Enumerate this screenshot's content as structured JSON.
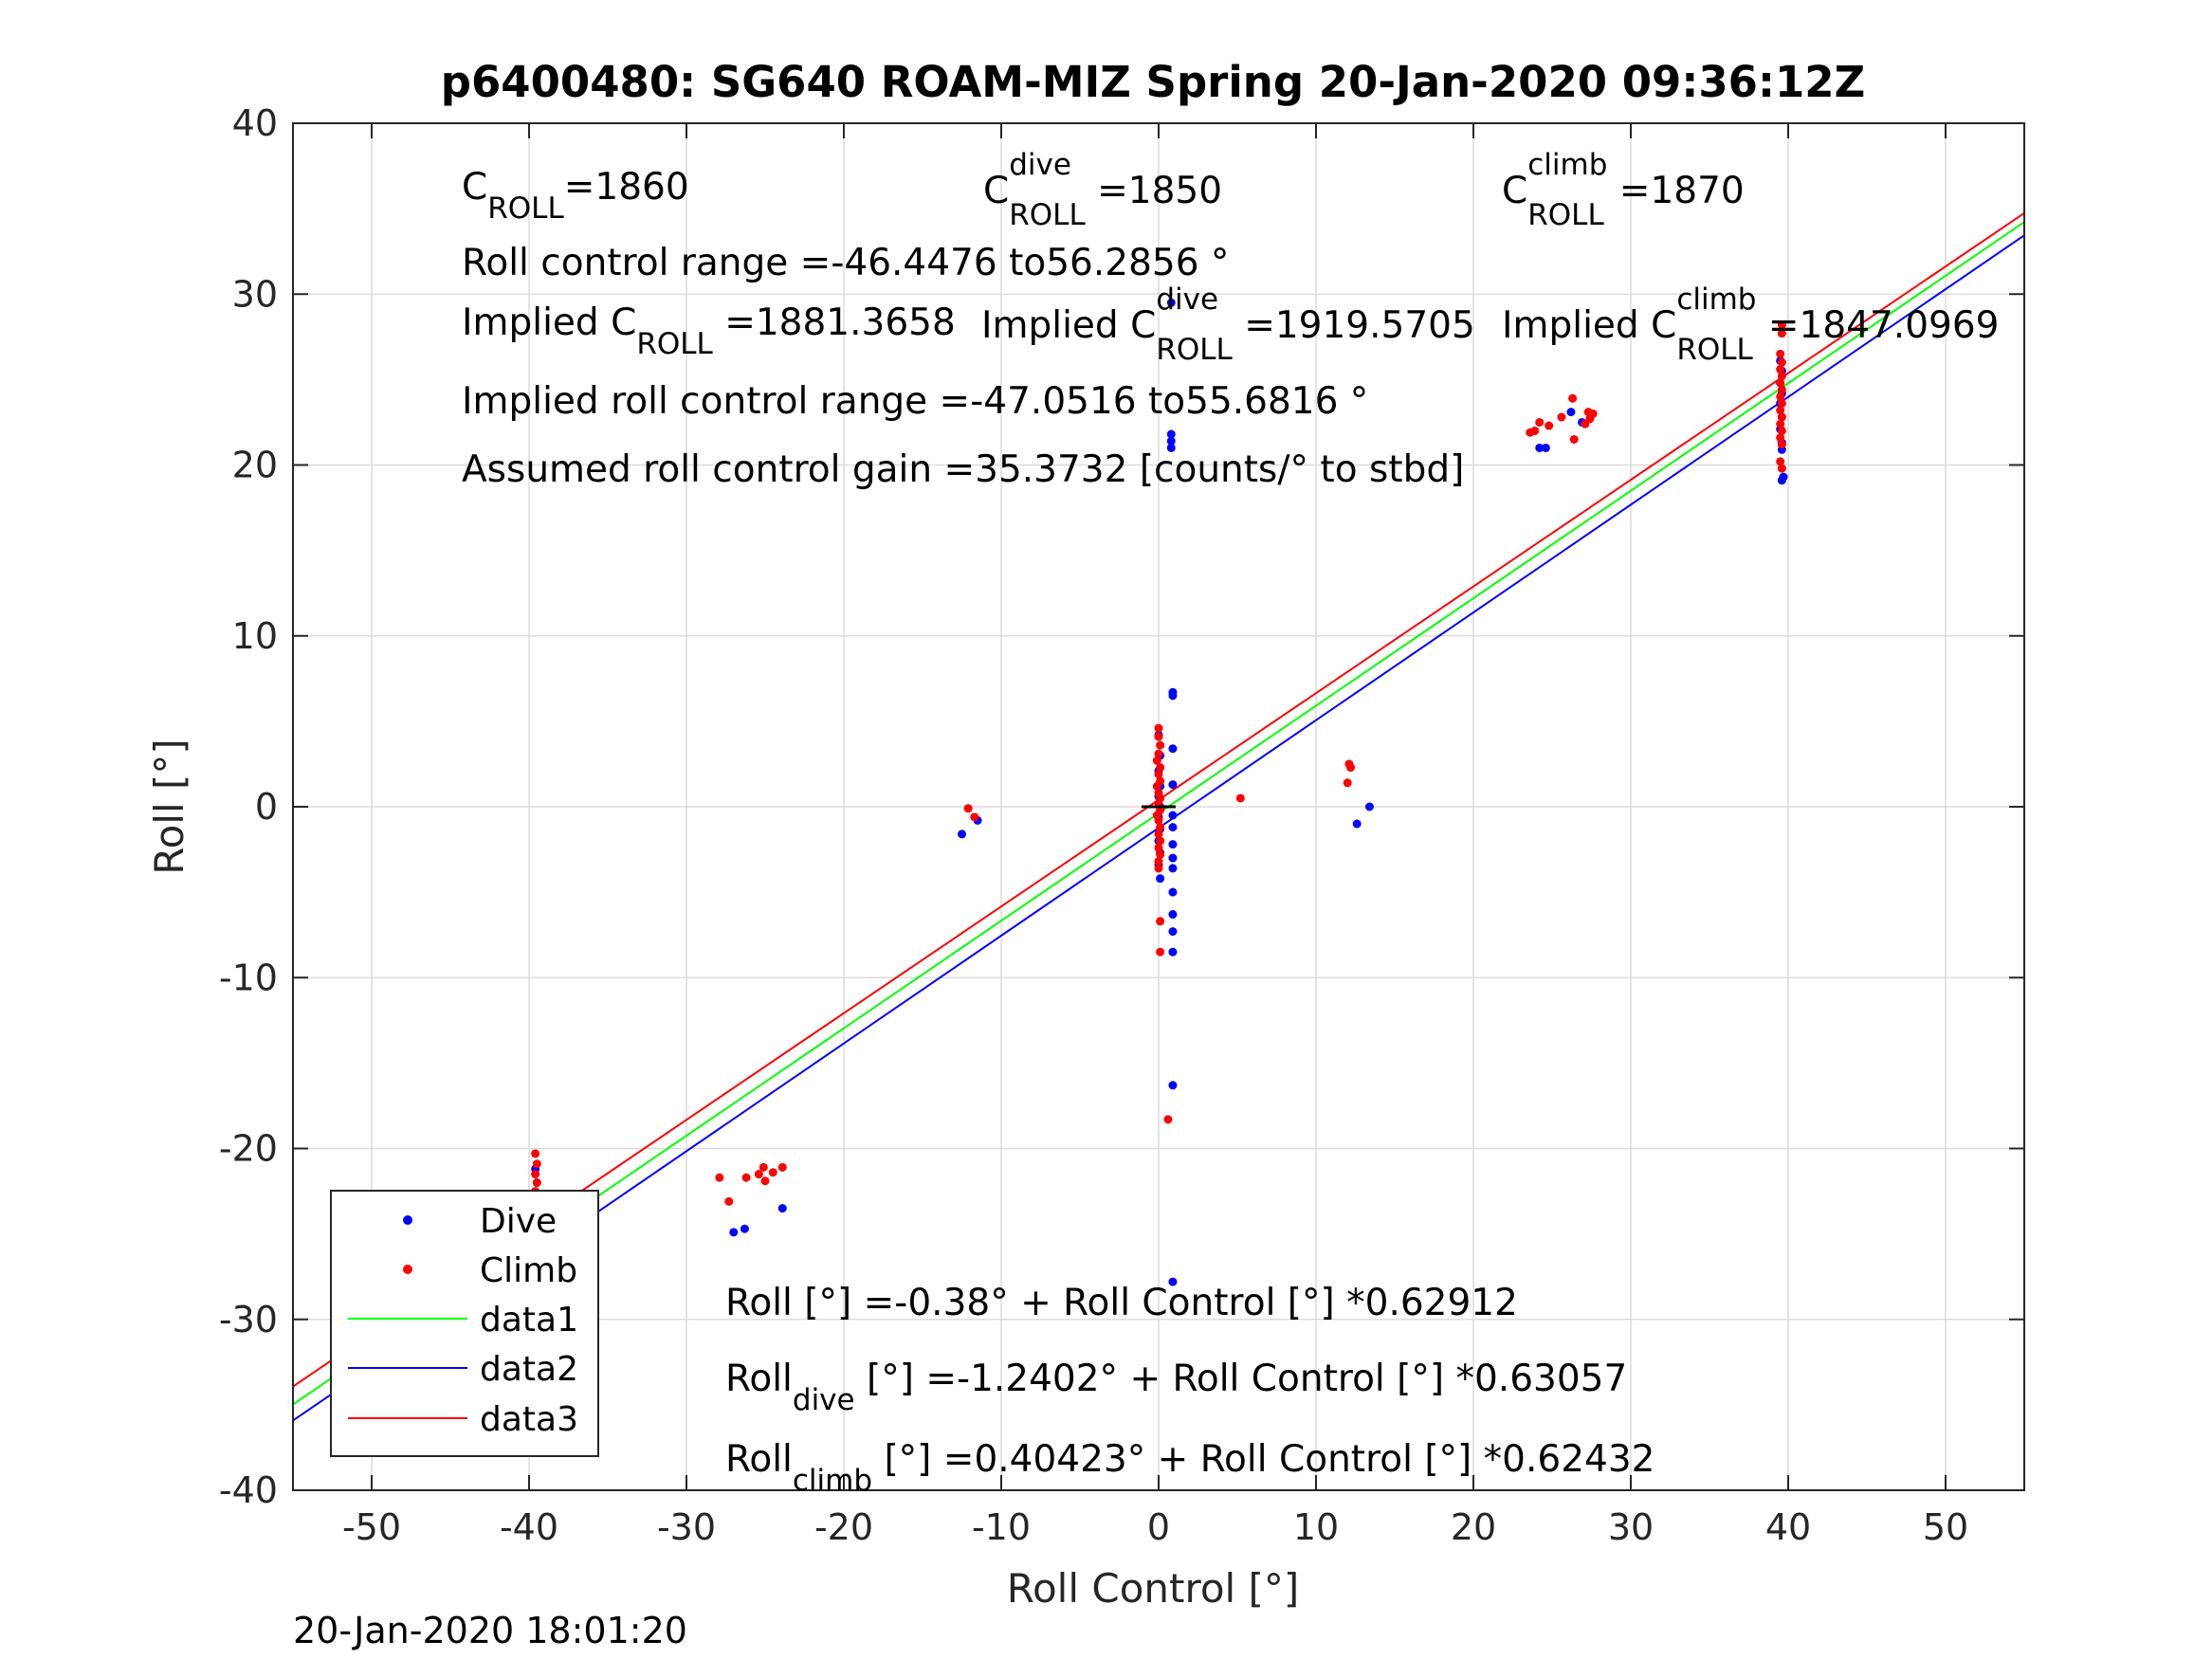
{
  "chart_data": {
    "type": "scatter",
    "title": "p6400480: SG640 ROAM-MIZ Spring 20-Jan-2020 09:36:12Z",
    "xlabel": "Roll Control [°]",
    "ylabel": "Roll [°]",
    "xlim": [
      -55,
      55
    ],
    "ylim": [
      -40,
      40
    ],
    "xticks": [
      -50,
      -40,
      -30,
      -20,
      -10,
      0,
      10,
      20,
      30,
      40,
      50
    ],
    "yticks": [
      -40,
      -30,
      -20,
      -10,
      0,
      10,
      20,
      30,
      40
    ],
    "grid": true,
    "legend_position": "bottom-left",
    "colors": {
      "dive": "#0000ff",
      "climb": "#ff0000",
      "data1": "#00ff00",
      "data2": "#0000ff",
      "data3": "#ff0000"
    },
    "series": [
      {
        "name": "Dive",
        "kind": "points",
        "color": "#0000ff",
        "points": [
          [
            -39.6,
            -29.1
          ],
          [
            -39.5,
            -27.8
          ],
          [
            -39.6,
            -27.0
          ],
          [
            -39.5,
            -26.5
          ],
          [
            -39.6,
            -26.0
          ],
          [
            -39.5,
            -25.2
          ],
          [
            -39.6,
            -24.6
          ],
          [
            -39.5,
            -23.8
          ],
          [
            -39.6,
            -22.9
          ],
          [
            -39.5,
            -22.0
          ],
          [
            -39.6,
            -21.2
          ],
          [
            -27.0,
            -24.9
          ],
          [
            -26.3,
            -24.7
          ],
          [
            -23.9,
            -23.5
          ],
          [
            -12.5,
            -1.6
          ],
          [
            -11.5,
            -0.8
          ],
          [
            0.0,
            4.2
          ],
          [
            0.1,
            3.0
          ],
          [
            0.0,
            2.1
          ],
          [
            0.1,
            1.2
          ],
          [
            0.0,
            0.6
          ],
          [
            0.1,
            0.0
          ],
          [
            0.0,
            -0.6
          ],
          [
            0.1,
            -1.3
          ],
          [
            0.0,
            -2.0
          ],
          [
            0.1,
            -2.7
          ],
          [
            0.0,
            -3.4
          ],
          [
            0.1,
            -4.2
          ],
          [
            0.8,
            29.5
          ],
          [
            0.8,
            21.8
          ],
          [
            0.8,
            21.4
          ],
          [
            0.8,
            21.0
          ],
          [
            0.9,
            6.7
          ],
          [
            0.9,
            6.5
          ],
          [
            0.9,
            3.4
          ],
          [
            0.9,
            1.3
          ],
          [
            0.9,
            -0.5
          ],
          [
            0.9,
            -1.2
          ],
          [
            0.9,
            -2.2
          ],
          [
            0.9,
            -3.0
          ],
          [
            0.9,
            -3.6
          ],
          [
            0.9,
            -5.0
          ],
          [
            0.9,
            -6.3
          ],
          [
            0.9,
            -7.3
          ],
          [
            0.9,
            -8.5
          ],
          [
            0.9,
            -16.3
          ],
          [
            0.9,
            -27.8
          ],
          [
            12.6,
            -1.0
          ],
          [
            13.4,
            0.0
          ],
          [
            24.2,
            21.0
          ],
          [
            24.6,
            21.0
          ],
          [
            26.9,
            22.5
          ],
          [
            26.2,
            23.1
          ],
          [
            39.5,
            26.1
          ],
          [
            39.6,
            25.5
          ],
          [
            39.5,
            24.8
          ],
          [
            39.6,
            24.2
          ],
          [
            39.5,
            23.6
          ],
          [
            39.6,
            22.8
          ],
          [
            39.5,
            22.1
          ],
          [
            39.6,
            21.3
          ],
          [
            39.6,
            20.9
          ],
          [
            39.7,
            19.3
          ],
          [
            39.6,
            19.1
          ]
        ]
      },
      {
        "name": "Climb",
        "kind": "points",
        "color": "#ff0000",
        "points": [
          [
            -39.6,
            -20.3
          ],
          [
            -39.5,
            -20.9
          ],
          [
            -39.6,
            -21.5
          ],
          [
            -39.5,
            -22.0
          ],
          [
            -39.6,
            -22.5
          ],
          [
            -39.5,
            -23.0
          ],
          [
            -39.6,
            -23.4
          ],
          [
            -39.5,
            -23.8
          ],
          [
            -39.6,
            -24.2
          ],
          [
            -39.5,
            -24.6
          ],
          [
            -39.6,
            -25.0
          ],
          [
            -39.5,
            -25.4
          ],
          [
            -39.6,
            -25.8
          ],
          [
            -39.5,
            -26.2
          ],
          [
            -27.9,
            -21.7
          ],
          [
            -27.3,
            -23.1
          ],
          [
            -26.2,
            -21.7
          ],
          [
            -25.4,
            -21.5
          ],
          [
            -25.1,
            -21.1
          ],
          [
            -25.0,
            -21.9
          ],
          [
            -24.5,
            -21.4
          ],
          [
            -23.9,
            -21.1
          ],
          [
            -12.1,
            -0.1
          ],
          [
            -11.7,
            -0.6
          ],
          [
            0.0,
            4.6
          ],
          [
            0.0,
            4.1
          ],
          [
            0.1,
            3.6
          ],
          [
            0.0,
            3.1
          ],
          [
            -0.1,
            2.7
          ],
          [
            0.1,
            2.3
          ],
          [
            0.0,
            1.9
          ],
          [
            0.1,
            1.5
          ],
          [
            -0.1,
            1.2
          ],
          [
            0.0,
            0.8
          ],
          [
            0.1,
            0.5
          ],
          [
            0.0,
            0.2
          ],
          [
            0.1,
            -0.2
          ],
          [
            -0.1,
            -0.5
          ],
          [
            0.0,
            -0.8
          ],
          [
            0.1,
            -1.2
          ],
          [
            0.0,
            -1.6
          ],
          [
            0.1,
            -2.0
          ],
          [
            0.0,
            -2.4
          ],
          [
            0.1,
            -2.8
          ],
          [
            0.0,
            -3.2
          ],
          [
            0.0,
            -3.6
          ],
          [
            0.1,
            -6.7
          ],
          [
            0.1,
            -8.5
          ],
          [
            0.6,
            -18.3
          ],
          [
            5.2,
            0.5
          ],
          [
            12.1,
            2.5
          ],
          [
            12.2,
            2.3
          ],
          [
            12.0,
            1.4
          ],
          [
            23.6,
            21.9
          ],
          [
            23.9,
            22.0
          ],
          [
            24.2,
            22.5
          ],
          [
            24.8,
            22.3
          ],
          [
            25.6,
            22.8
          ],
          [
            26.3,
            23.9
          ],
          [
            26.4,
            21.5
          ],
          [
            27.3,
            23.1
          ],
          [
            27.4,
            22.7
          ],
          [
            27.6,
            23.0
          ],
          [
            27.1,
            22.4
          ],
          [
            39.6,
            28.2
          ],
          [
            39.6,
            27.7
          ],
          [
            39.5,
            26.5
          ],
          [
            39.6,
            26.0
          ],
          [
            39.5,
            25.6
          ],
          [
            39.6,
            25.2
          ],
          [
            39.5,
            24.8
          ],
          [
            39.6,
            24.4
          ],
          [
            39.5,
            24.0
          ],
          [
            39.6,
            23.6
          ],
          [
            39.5,
            23.2
          ],
          [
            39.6,
            22.8
          ],
          [
            39.5,
            22.4
          ],
          [
            39.6,
            22.0
          ],
          [
            39.5,
            21.6
          ],
          [
            39.6,
            21.2
          ],
          [
            39.5,
            20.2
          ],
          [
            39.6,
            19.8
          ]
        ]
      },
      {
        "name": "data1",
        "kind": "line",
        "color": "#00ff00",
        "x": [
          -55,
          55
        ],
        "y": [
          -34.98,
          34.22
        ]
      },
      {
        "name": "data2",
        "kind": "line",
        "color": "#0000ff",
        "x": [
          -55,
          55
        ],
        "y": [
          -35.92,
          33.44
        ]
      },
      {
        "name": "data3",
        "kind": "line",
        "color": "#ff0000",
        "x": [
          -55,
          55
        ],
        "y": [
          -33.93,
          34.74
        ]
      }
    ],
    "annotations": {
      "c_roll": {
        "pre": "C",
        "sub": "ROLL",
        "post": "=1860"
      },
      "c_roll_dive": {
        "pre": "C",
        "sup": "dive",
        "sub": "ROLL",
        "post": " =1850"
      },
      "c_roll_climb": {
        "pre": "C",
        "sup": "climb",
        "sub": "ROLL",
        "post": " =1870"
      },
      "range_line": "Roll control range =-46.4476 to56.2856 °",
      "implied_c_roll": {
        "pre": "Implied C",
        "sub": "ROLL",
        "post": " =1881.3658"
      },
      "implied_c_roll_dive": {
        "pre": "Implied C",
        "sup": "dive",
        "sub": "ROLL",
        "post": " =1919.5705"
      },
      "implied_c_roll_climb": {
        "pre": "Implied C",
        "sup": "climb",
        "sub": "ROLL",
        "post": " =1847.0969"
      },
      "implied_range_line": "Implied roll control range =-47.0516 to55.6816 °",
      "gain_line": "Assumed roll control gain =35.3732 [counts/° to stbd]",
      "fit_all": {
        "pre": "Roll [°] =-0.38° + Roll Control [°] *0.62912"
      },
      "fit_dive": {
        "pre": "Roll",
        "sub": "dive",
        "post": " [°] =-1.2402° + Roll Control [°] *0.63057"
      },
      "fit_climb": {
        "pre": "Roll",
        "sub": "climb",
        "post": " [°] =0.40423° + Roll Control [°] *0.62432"
      }
    },
    "timestamp": "20-Jan-2020 18:01:20"
  }
}
